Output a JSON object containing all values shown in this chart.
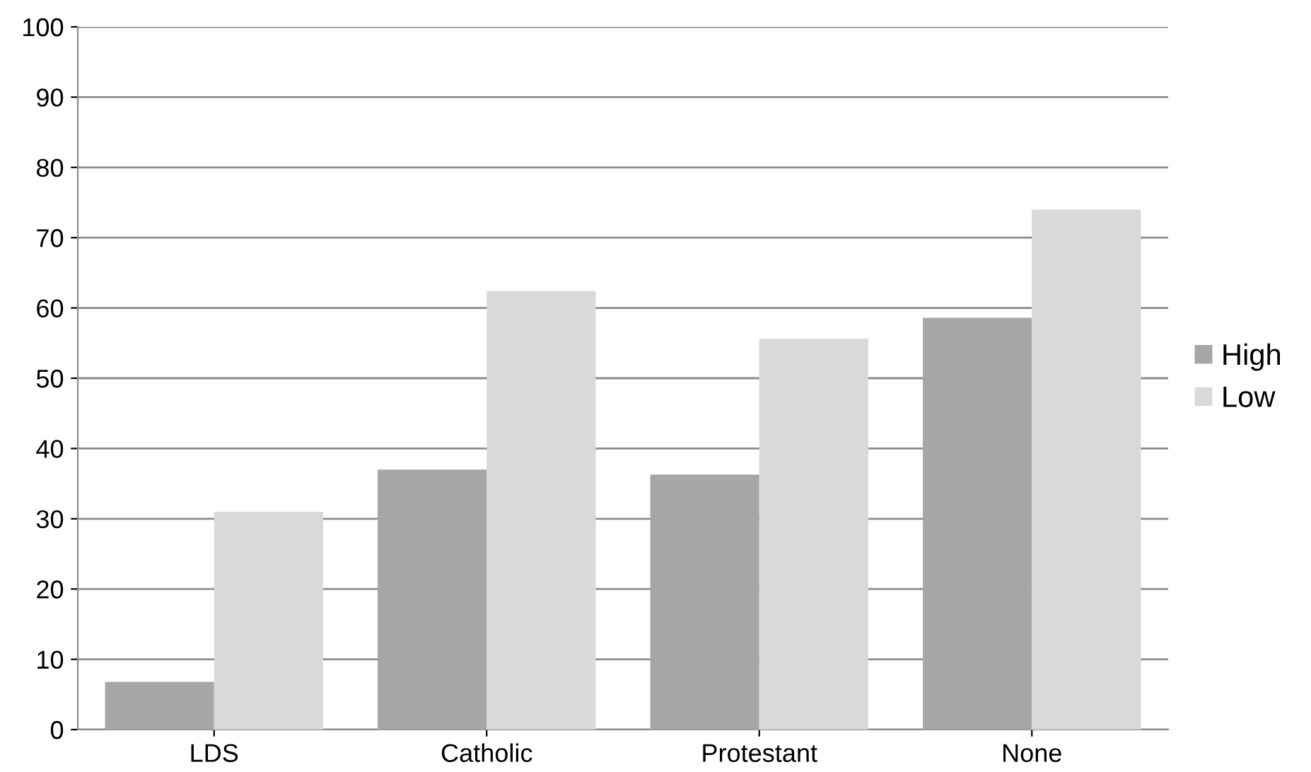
{
  "chart_data": {
    "type": "bar",
    "categories": [
      "LDS",
      "Catholic",
      "Protestant",
      "None"
    ],
    "series": [
      {
        "name": "High",
        "color": "#a6a6a6",
        "values": [
          6.8,
          37,
          36.3,
          58.6
        ]
      },
      {
        "name": "Low",
        "color": "#d9d9d9",
        "values": [
          31,
          62.4,
          55.6,
          74
        ]
      }
    ],
    "ylim": [
      0,
      100
    ],
    "yticks": [
      0,
      10,
      20,
      30,
      40,
      50,
      60,
      70,
      80,
      90,
      100
    ],
    "grid": "y",
    "legend": "right"
  }
}
